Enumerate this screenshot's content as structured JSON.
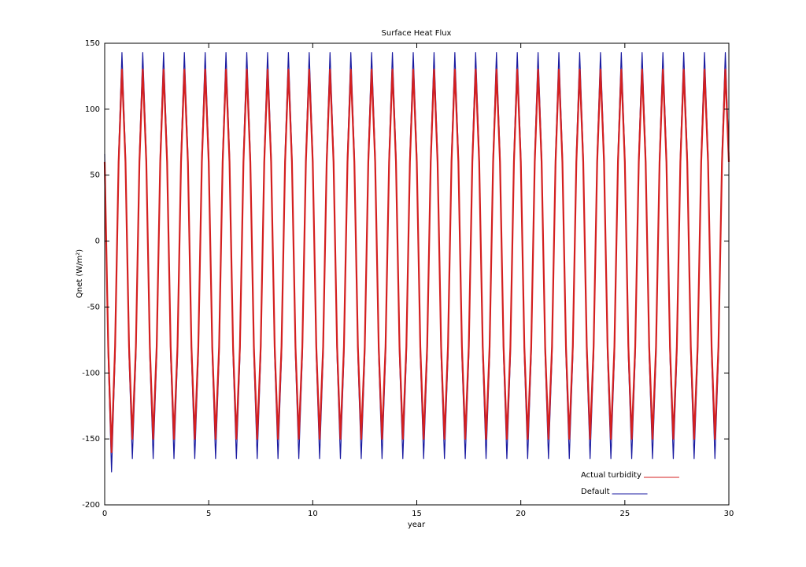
{
  "chart_data": {
    "type": "line",
    "title": "Surface Heat Flux",
    "xlabel": "year",
    "ylabel": "Qnet (W/m²)",
    "x": [
      0,
      0.17,
      0.33,
      0.5,
      0.67,
      0.83,
      1,
      1.17,
      1.33,
      1.5,
      1.67,
      1.83,
      2,
      2.17,
      2.33,
      2.5,
      2.67,
      2.83,
      3,
      3.17,
      3.33,
      3.5,
      3.67,
      3.83,
      4,
      4.17,
      4.33,
      4.5,
      4.67,
      4.83,
      5,
      5.17,
      5.33,
      5.5,
      5.67,
      5.83,
      6,
      6.17,
      6.33,
      6.5,
      6.67,
      6.83,
      7,
      7.17,
      7.33,
      7.5,
      7.67,
      7.83,
      8,
      8.17,
      8.33,
      8.5,
      8.67,
      8.83,
      9,
      9.17,
      9.33,
      9.5,
      9.67,
      9.83,
      10,
      10.17,
      10.33,
      10.5,
      10.67,
      10.83,
      11,
      11.17,
      11.33,
      11.5,
      11.67,
      11.83,
      12,
      12.17,
      12.33,
      12.5,
      12.67,
      12.83,
      13,
      13.17,
      13.33,
      13.5,
      13.67,
      13.83,
      14,
      14.17,
      14.33,
      14.5,
      14.67,
      14.83,
      15,
      15.17,
      15.33,
      15.5,
      15.67,
      15.83,
      16,
      16.17,
      16.33,
      16.5,
      16.67,
      16.83,
      17,
      17.17,
      17.33,
      17.5,
      17.67,
      17.83,
      18,
      18.17,
      18.33,
      18.5,
      18.67,
      18.83,
      19,
      19.17,
      19.33,
      19.5,
      19.67,
      19.83,
      20,
      20.17,
      20.33,
      20.5,
      20.67,
      20.83,
      21,
      21.17,
      21.33,
      21.5,
      21.67,
      21.83,
      22,
      22.17,
      22.33,
      22.5,
      22.67,
      22.83,
      23,
      23.17,
      23.33,
      23.5,
      23.67,
      23.83,
      24,
      24.17,
      24.33,
      24.5,
      24.67,
      24.83,
      25,
      25.17,
      25.33,
      25.5,
      25.67,
      25.83,
      26,
      26.17,
      26.33,
      26.5,
      26.67,
      26.83,
      27,
      27.17,
      27.33,
      27.5,
      27.67,
      27.83,
      28,
      28.17,
      28.33,
      28.5,
      28.67,
      28.83,
      29,
      29.17,
      29.33,
      29.5,
      29.67,
      29.83,
      30
    ],
    "series": [
      {
        "name": "Default",
        "color": "#1a1aa0",
        "values": [
          66,
          -88,
          -175,
          -88,
          66,
          143,
          66,
          -88,
          -165,
          -88,
          66,
          143,
          66,
          -88,
          -165,
          -88,
          66,
          143,
          66,
          -88,
          -165,
          -88,
          66,
          143,
          66,
          -88,
          -165,
          -88,
          66,
          143,
          66,
          -88,
          -165,
          -88,
          66,
          143,
          66,
          -88,
          -165,
          -88,
          66,
          143,
          66,
          -88,
          -165,
          -88,
          66,
          143,
          66,
          -88,
          -165,
          -88,
          66,
          143,
          66,
          -88,
          -165,
          -88,
          66,
          143,
          66,
          -88,
          -165,
          -88,
          66,
          143,
          66,
          -88,
          -165,
          -88,
          66,
          143,
          66,
          -88,
          -165,
          -88,
          66,
          143,
          66,
          -88,
          -165,
          -88,
          66,
          143,
          66,
          -88,
          -165,
          -88,
          66,
          143,
          66,
          -88,
          -165,
          -88,
          66,
          143,
          66,
          -88,
          -165,
          -88,
          66,
          143,
          66,
          -88,
          -165,
          -88,
          66,
          143,
          66,
          -88,
          -165,
          -88,
          66,
          143,
          66,
          -88,
          -165,
          -88,
          66,
          143,
          66,
          -88,
          -165,
          -88,
          66,
          143,
          66,
          -88,
          -165,
          -88,
          66,
          143,
          66,
          -88,
          -165,
          -88,
          66,
          143,
          66,
          -88,
          -165,
          -88,
          66,
          143,
          66,
          -88,
          -165,
          -88,
          66,
          143,
          66,
          -88,
          -165,
          -88,
          66,
          143,
          66,
          -88,
          -165,
          -88,
          66,
          143,
          66,
          -88,
          -165,
          -88,
          66,
          143,
          66,
          -88,
          -165,
          -88,
          66,
          143,
          66,
          -88,
          -165,
          -88,
          66,
          143,
          66
        ]
      },
      {
        "name": "Actual turbidity",
        "color": "#d42020",
        "values": [
          60,
          -80,
          -160,
          -80,
          60,
          130,
          60,
          -80,
          -150,
          -80,
          60,
          130,
          60,
          -80,
          -150,
          -80,
          60,
          130,
          60,
          -80,
          -150,
          -80,
          60,
          130,
          60,
          -80,
          -150,
          -80,
          60,
          130,
          60,
          -80,
          -150,
          -80,
          60,
          130,
          60,
          -80,
          -150,
          -80,
          60,
          130,
          60,
          -80,
          -150,
          -80,
          60,
          130,
          60,
          -80,
          -150,
          -80,
          60,
          130,
          60,
          -80,
          -150,
          -80,
          60,
          130,
          60,
          -80,
          -150,
          -80,
          60,
          130,
          60,
          -80,
          -150,
          -80,
          60,
          130,
          60,
          -80,
          -150,
          -80,
          60,
          130,
          60,
          -80,
          -150,
          -80,
          60,
          130,
          60,
          -80,
          -150,
          -80,
          60,
          130,
          60,
          -80,
          -150,
          -80,
          60,
          130,
          60,
          -80,
          -150,
          -80,
          60,
          130,
          60,
          -80,
          -150,
          -80,
          60,
          130,
          60,
          -80,
          -150,
          -80,
          60,
          130,
          60,
          -80,
          -150,
          -80,
          60,
          130,
          60,
          -80,
          -150,
          -80,
          60,
          130,
          60,
          -80,
          -150,
          -80,
          60,
          130,
          60,
          -80,
          -150,
          -80,
          60,
          130,
          60,
          -80,
          -150,
          -80,
          60,
          130,
          60,
          -80,
          -150,
          -80,
          60,
          130,
          60,
          -80,
          -150,
          -80,
          60,
          130,
          60,
          -80,
          -150,
          -80,
          60,
          130,
          60,
          -80,
          -150,
          -80,
          60,
          130,
          60,
          -80,
          -150,
          -80,
          60,
          130,
          60,
          -80,
          -150,
          -80,
          60,
          130,
          60
        ]
      }
    ],
    "xlim": [
      0,
      30
    ],
    "xticks": [
      0,
      5,
      10,
      15,
      20,
      25,
      30
    ],
    "ylim": [
      -200,
      150
    ],
    "yticks": [
      -200,
      -150,
      -100,
      -50,
      0,
      50,
      100,
      150
    ]
  }
}
